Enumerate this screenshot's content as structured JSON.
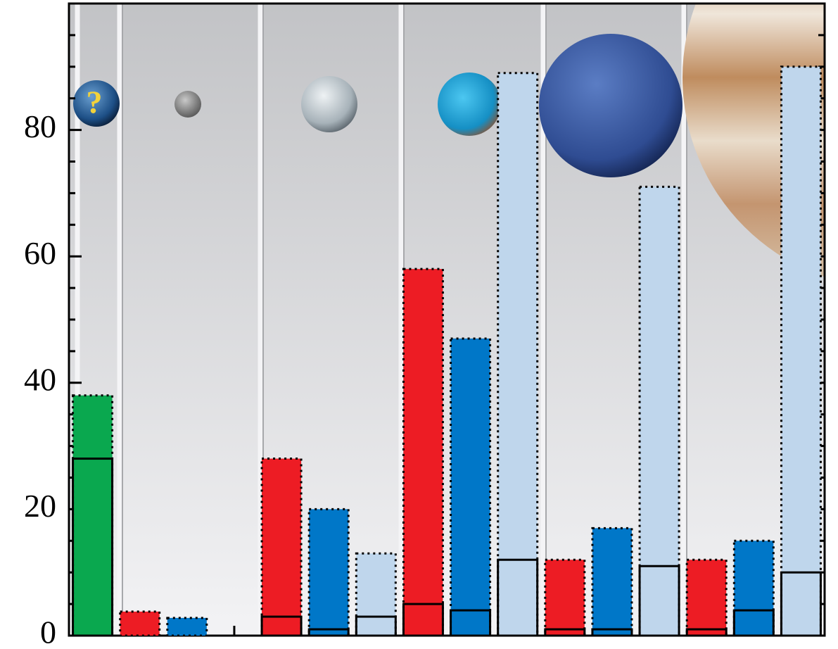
{
  "chart_data": {
    "type": "bar",
    "series": [
      {
        "color": "#0aa84f",
        "values": [
          38,
          null,
          null,
          null,
          null,
          null
        ],
        "lower": [
          28,
          null,
          null,
          null,
          null,
          null
        ]
      },
      {
        "color": "#ed1c24",
        "values": [
          null,
          3.8,
          28,
          58,
          12,
          12
        ],
        "lower": [
          null,
          null,
          3,
          5,
          1,
          1
        ]
      },
      {
        "color": "#0077c8",
        "values": [
          null,
          2.8,
          20,
          47,
          17,
          15
        ],
        "lower": [
          null,
          null,
          1,
          4,
          1,
          4
        ]
      },
      {
        "color": "#bfd6ec",
        "values": [
          null,
          null,
          13,
          89,
          71,
          90
        ],
        "lower": [
          null,
          null,
          3,
          12,
          11,
          10
        ]
      }
    ],
    "ylim": [
      0,
      100
    ],
    "yticks": [
      0,
      20,
      40,
      60,
      80
    ],
    "minor_yticks": [
      5,
      10,
      15,
      25,
      30,
      35,
      45,
      50,
      55,
      65,
      70,
      75,
      85,
      90,
      95
    ]
  }
}
